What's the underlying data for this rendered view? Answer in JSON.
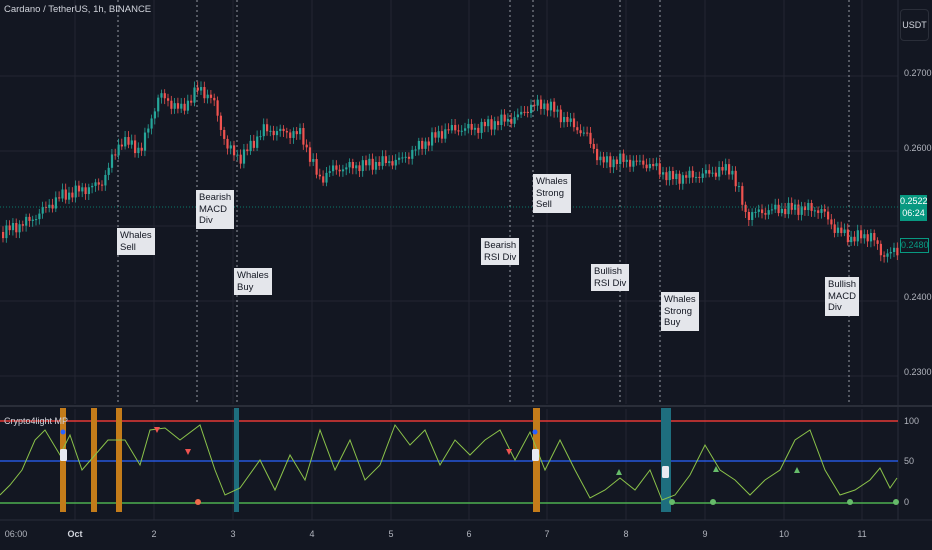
{
  "chart": {
    "symbol": "Cardano / TetherUS, 1h, BINANCE",
    "currency": "USDT",
    "price_labels": [
      "0.2700",
      "0.2600",
      "0.2400",
      "0.2300"
    ],
    "current_price": "0.2522",
    "countdown": "06:24",
    "previous_price": "0.2480"
  },
  "annotations": [
    "Whales\nSell",
    "Bearish\nMACD\nDiv",
    "Whales\nBuy",
    "Bearish\nRSI Div",
    "Whales\nStrong\nSell",
    "Bullish\nRSI Div",
    "Whales\nStrong\nBuy",
    "Bullish\nMACD\nDiv"
  ],
  "indicator": {
    "name": "Crypto4light MP",
    "levels": [
      "100",
      "50",
      "0"
    ]
  },
  "time_axis": [
    "06:00",
    "Oct",
    "2",
    "3",
    "4",
    "5",
    "6",
    "7",
    "8",
    "9",
    "10",
    "11"
  ],
  "colors": {
    "background": "#131722",
    "up": "#26a69a",
    "down": "#ef5350",
    "grid": "#232632",
    "line_100": "#e53935",
    "line_50": "#2962ff",
    "line_0": "#4caf50",
    "osc": "#8bc34a",
    "orange_band": "#c47c1a",
    "teal_band": "#1e6e7e"
  }
}
